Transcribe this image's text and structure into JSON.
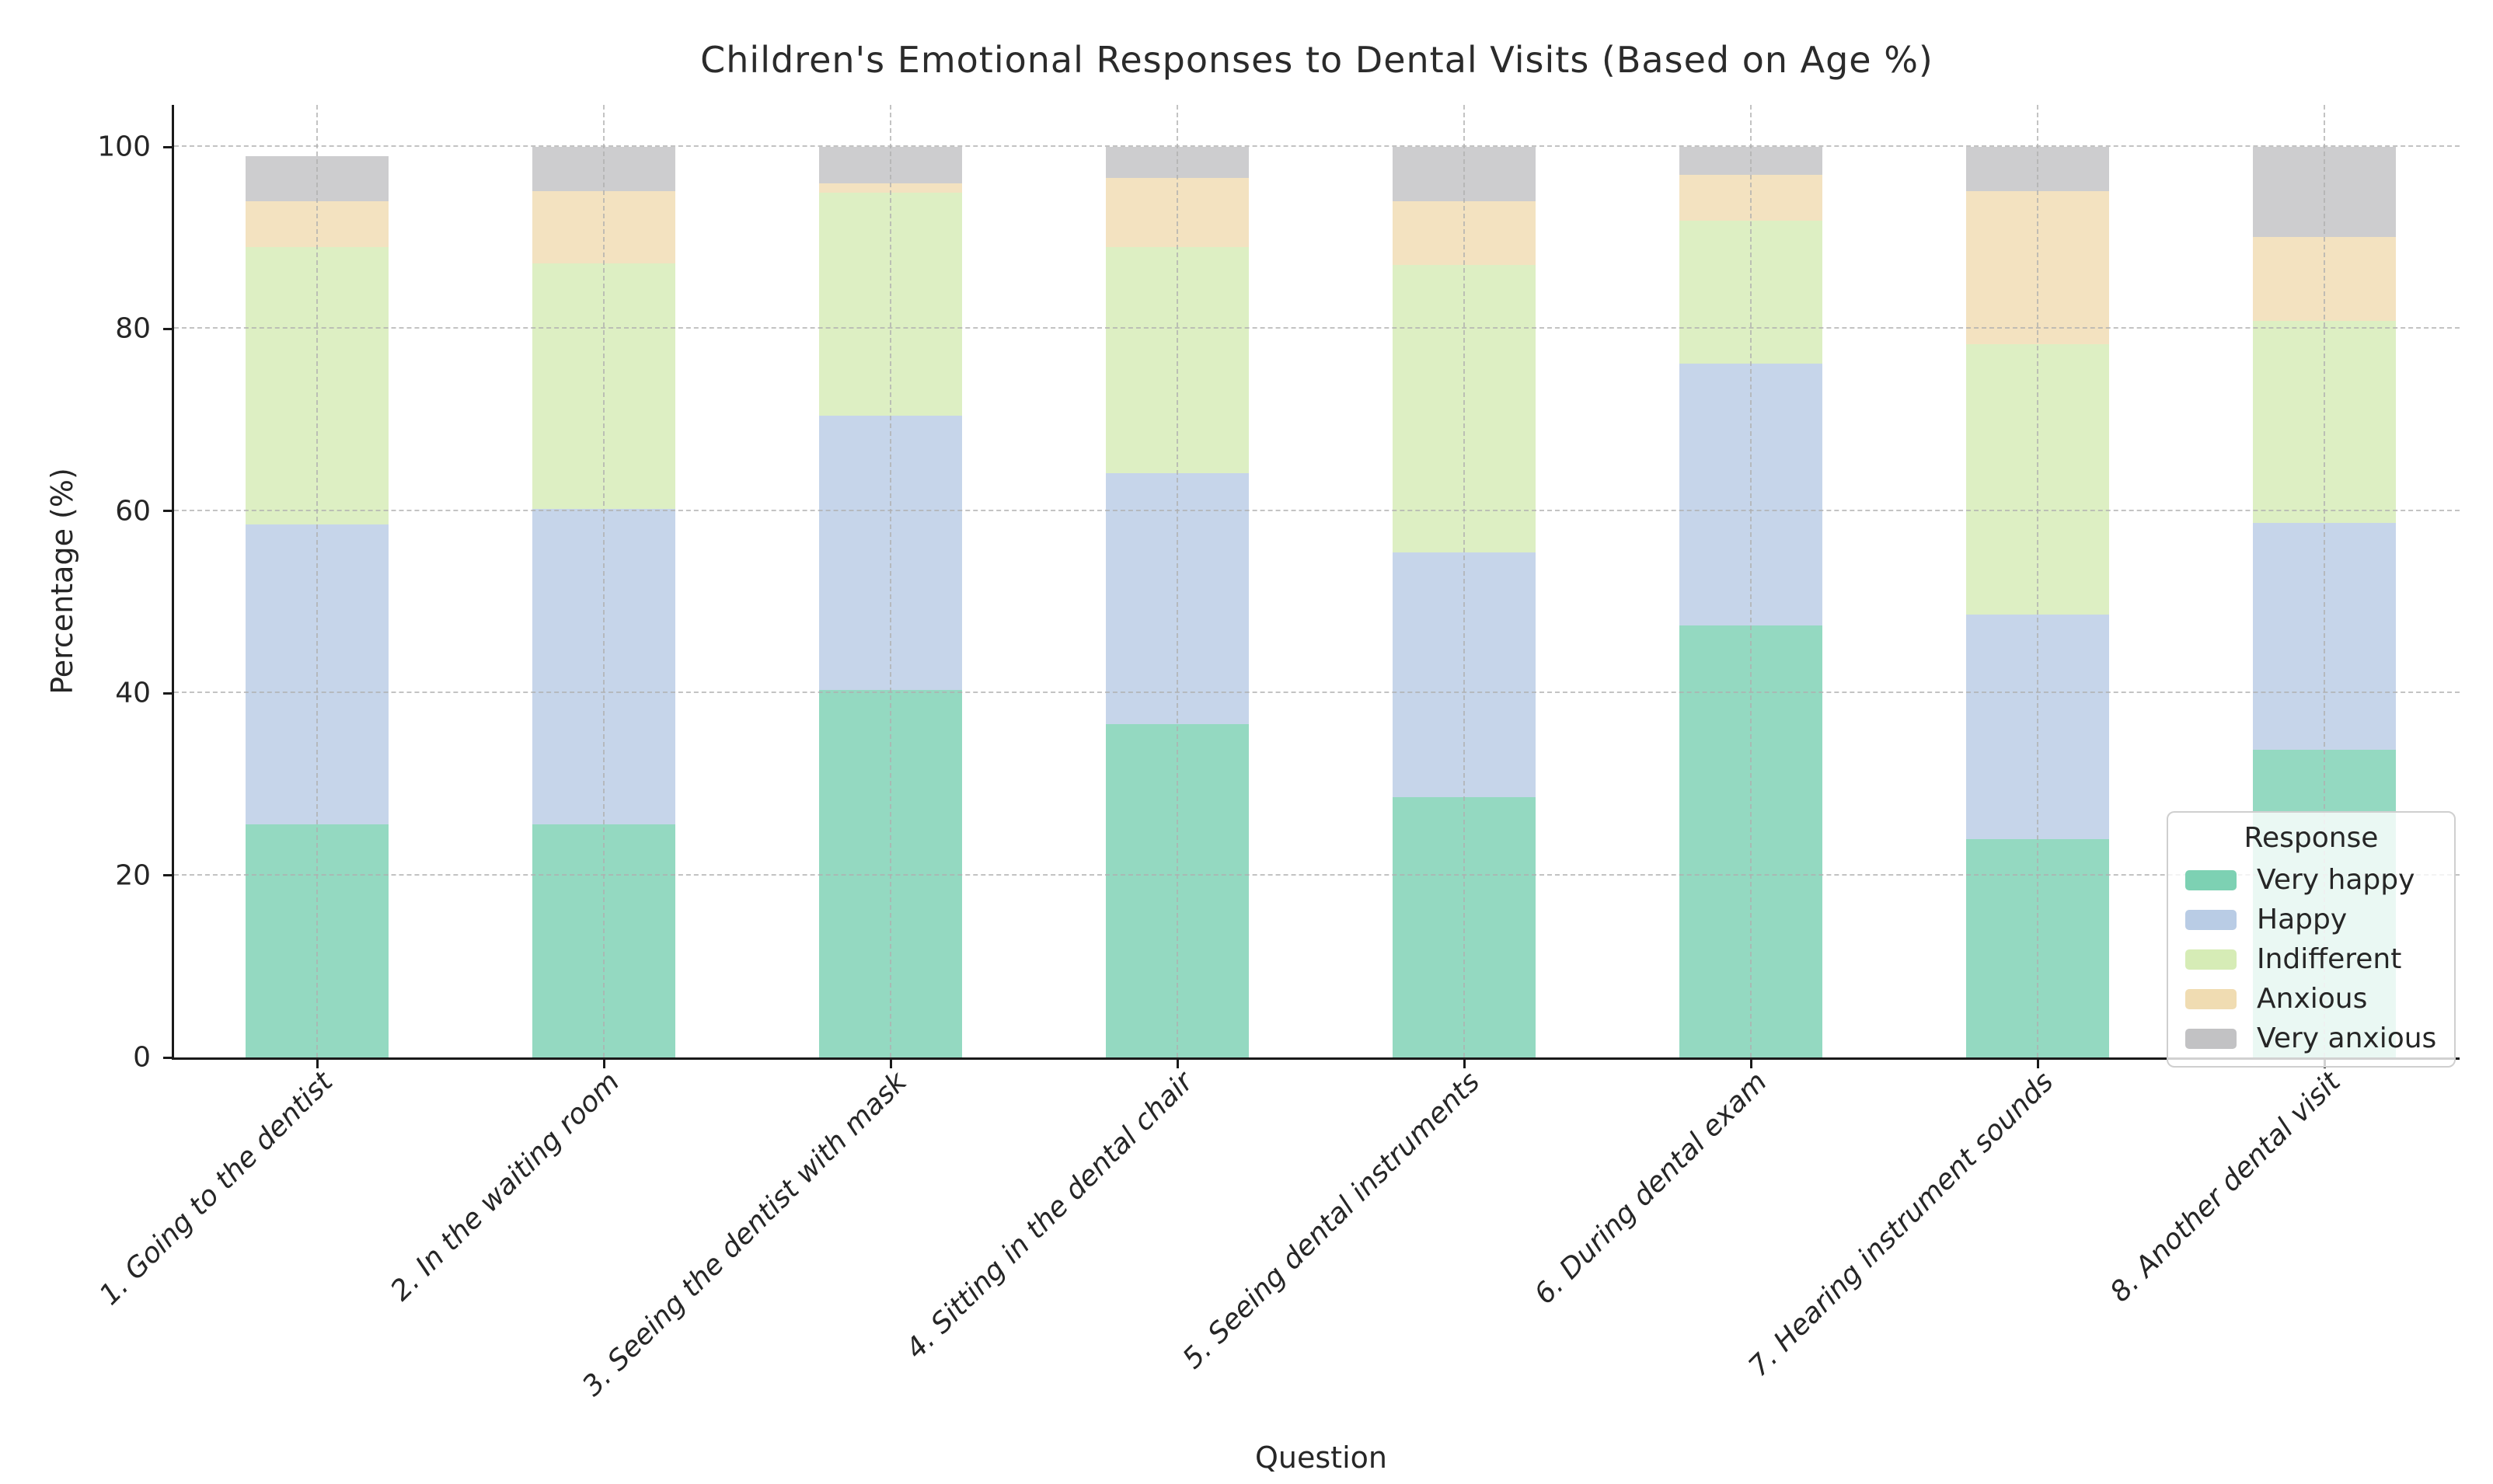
{
  "legend": {
    "title": "Response",
    "position": "lower right"
  },
  "axes": {
    "y_tick_labels": [
      "0",
      "20",
      "40",
      "60",
      "80",
      "100"
    ],
    "grid_style": "dashed"
  },
  "colors": {
    "very_happy": "#7dd1b3",
    "happy": "#b9cce5",
    "indifferent": "#d6ecb6",
    "anxious": "#f0dcb2",
    "very_anxious": "#c2c2c4",
    "spine": "#1a1a1a",
    "text": "#262626"
  },
  "chart_data": {
    "type": "bar",
    "stacked": true,
    "title": "Children's Emotional Responses to Dental Visits (Based on Age %)",
    "xlabel": "Question",
    "ylabel": "Percentage (%)",
    "ylim": [
      0,
      100
    ],
    "y_ticks": [
      0,
      20,
      40,
      60,
      80,
      100
    ],
    "grid": "dashed gridlines on both axes",
    "legend_position": "lower right",
    "categories": [
      "1. Going to the dentist",
      "2. In the waiting room",
      "3. Seeing the dentist with mask",
      "4. Sitting in the dental chair",
      "5. Seeing dental instruments",
      "6. During dental exam",
      "7. Hearing instrument sounds",
      "8. Another dental visit"
    ],
    "series": [
      {
        "name": "Very happy",
        "color": "#7dd1b3",
        "values": [
          25.6,
          25.6,
          40.4,
          36.6,
          28.6,
          47.4,
          24.0,
          33.8
        ]
      },
      {
        "name": "Happy",
        "color": "#b9cce5",
        "values": [
          32.9,
          34.6,
          30.1,
          27.6,
          26.9,
          28.8,
          24.6,
          24.9
        ]
      },
      {
        "name": "Indifferent",
        "color": "#d6ecb6",
        "values": [
          30.5,
          27.0,
          24.5,
          24.8,
          31.5,
          15.7,
          29.7,
          22.2
        ]
      },
      {
        "name": "Anxious",
        "color": "#f0dcb2",
        "values": [
          5.0,
          7.9,
          1.0,
          7.6,
          7.0,
          5.0,
          16.8,
          9.2
        ]
      },
      {
        "name": "Very anxious",
        "color": "#c2c2c4",
        "values": [
          5.0,
          4.9,
          4.0,
          3.4,
          6.0,
          3.1,
          4.9,
          9.9
        ]
      }
    ]
  }
}
